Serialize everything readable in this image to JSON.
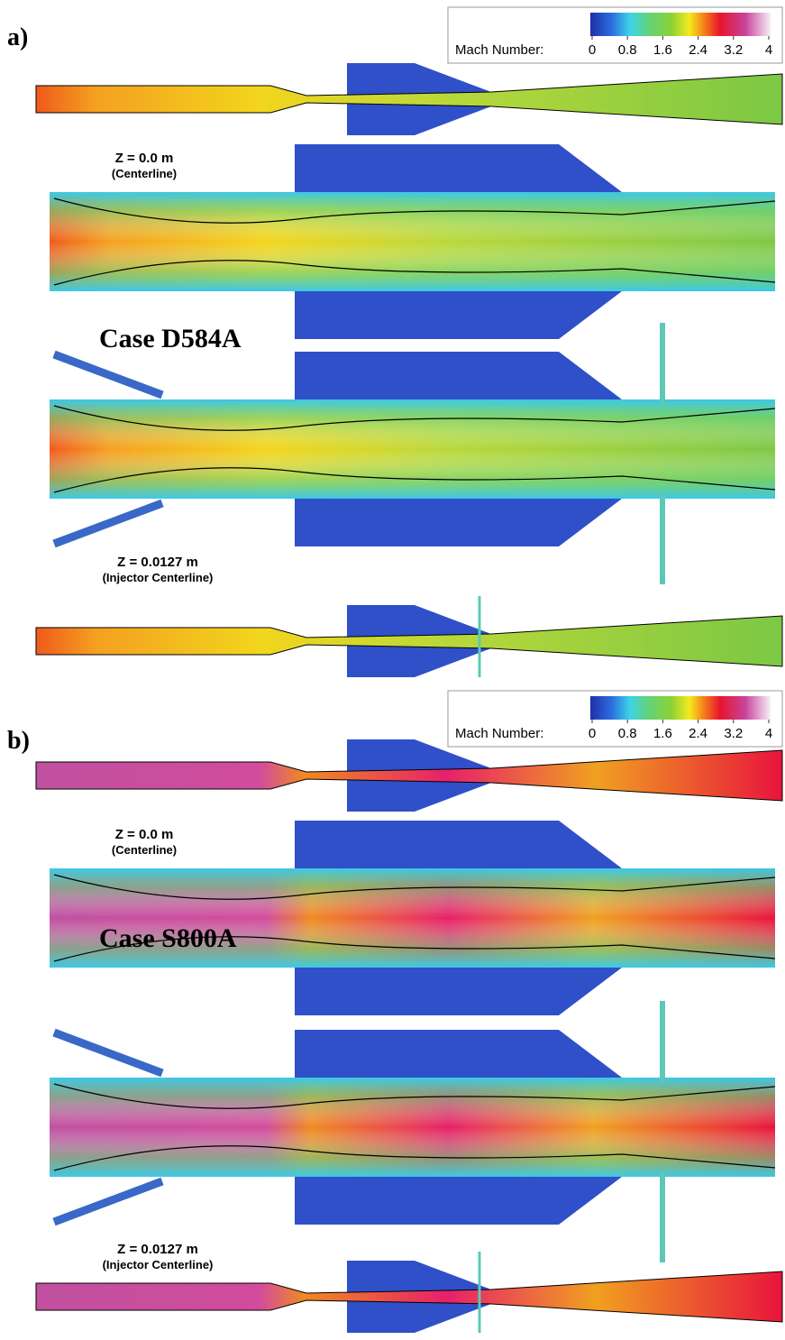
{
  "panels": [
    {
      "label": "a)",
      "colorbar": {
        "title": "Mach Number:",
        "ticks": [
          0,
          0.8,
          1.6,
          2.4,
          3.2,
          4
        ]
      },
      "centerline": {
        "label": "Z = 0.0 m",
        "note": "(Centerline)"
      },
      "case": "Case D584A",
      "injector": {
        "label": "Z = 0.0127 m",
        "note": "(Injector Centerline)"
      }
    },
    {
      "label": "b)",
      "colorbar": {
        "title": "Mach Number:",
        "ticks": [
          0,
          0.8,
          1.6,
          2.4,
          3.2,
          4
        ]
      },
      "centerline": {
        "label": "Z = 0.0 m",
        "note": "(Centerline)"
      },
      "case": "Case S800A",
      "injector": {
        "label": "Z = 0.0127 m",
        "note": "(Injector Centerline)"
      }
    }
  ]
}
